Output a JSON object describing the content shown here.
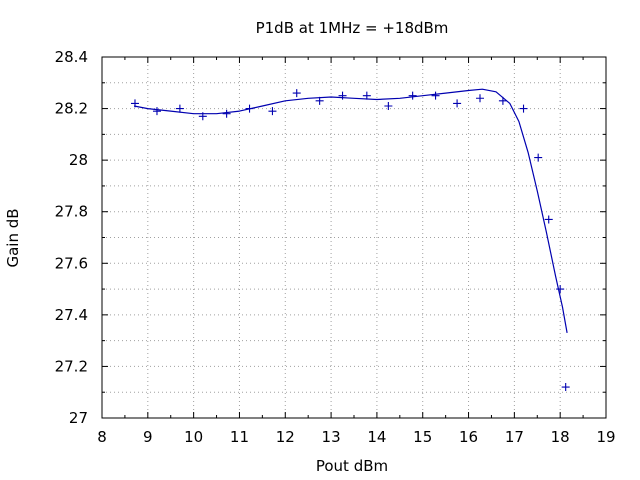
{
  "chart_data": {
    "type": "scatter",
    "title": "P1dB at 1MHz = +18dBm",
    "xlabel": "Pout dBm",
    "ylabel": "Gain dB",
    "xlim": [
      8,
      19
    ],
    "ylim": [
      27,
      28.4
    ],
    "x_ticks": [
      8,
      9,
      10,
      11,
      12,
      13,
      14,
      15,
      16,
      17,
      18,
      19
    ],
    "y_ticks": [
      27,
      27.2,
      27.4,
      27.6,
      27.8,
      28,
      28.2,
      28.4
    ],
    "x_tick_labels": [
      "8",
      "9",
      "10",
      "11",
      "12",
      "13",
      "14",
      "15",
      "16",
      "17",
      "18",
      "19"
    ],
    "y_tick_labels": [
      "27",
      "27.2",
      "27.4",
      "27.6",
      "27.8",
      "28",
      "28.2",
      "28.4"
    ],
    "grid": true,
    "colors": {
      "series": "#0000b0",
      "grid": "#a0a0a0",
      "frame": "#000000"
    },
    "series": [
      {
        "marker": "plus",
        "points": [
          {
            "x": 8.72,
            "y": 28.22
          },
          {
            "x": 9.2,
            "y": 28.19
          },
          {
            "x": 9.7,
            "y": 28.2
          },
          {
            "x": 10.2,
            "y": 28.17
          },
          {
            "x": 10.72,
            "y": 28.18
          },
          {
            "x": 11.22,
            "y": 28.2
          },
          {
            "x": 11.72,
            "y": 28.19
          },
          {
            "x": 12.25,
            "y": 28.26
          },
          {
            "x": 12.75,
            "y": 28.23
          },
          {
            "x": 13.25,
            "y": 28.25
          },
          {
            "x": 13.78,
            "y": 28.25
          },
          {
            "x": 14.25,
            "y": 28.21
          },
          {
            "x": 14.78,
            "y": 28.25
          },
          {
            "x": 15.28,
            "y": 28.25
          },
          {
            "x": 15.75,
            "y": 28.22
          },
          {
            "x": 16.25,
            "y": 28.24
          },
          {
            "x": 16.75,
            "y": 28.23
          },
          {
            "x": 17.2,
            "y": 28.2
          },
          {
            "x": 17.52,
            "y": 28.01
          },
          {
            "x": 17.75,
            "y": 27.77
          },
          {
            "x": 18.0,
            "y": 27.5
          },
          {
            "x": 18.12,
            "y": 27.12
          }
        ]
      },
      {
        "style": "line",
        "points": [
          {
            "x": 8.7,
            "y": 28.21
          },
          {
            "x": 9.0,
            "y": 28.2
          },
          {
            "x": 9.5,
            "y": 28.19
          },
          {
            "x": 10.0,
            "y": 28.18
          },
          {
            "x": 10.5,
            "y": 28.18
          },
          {
            "x": 11.0,
            "y": 28.19
          },
          {
            "x": 11.5,
            "y": 28.21
          },
          {
            "x": 12.0,
            "y": 28.23
          },
          {
            "x": 12.5,
            "y": 28.24
          },
          {
            "x": 13.0,
            "y": 28.245
          },
          {
            "x": 13.5,
            "y": 28.24
          },
          {
            "x": 14.0,
            "y": 28.235
          },
          {
            "x": 14.5,
            "y": 28.24
          },
          {
            "x": 15.0,
            "y": 28.25
          },
          {
            "x": 15.5,
            "y": 28.26
          },
          {
            "x": 16.0,
            "y": 28.27
          },
          {
            "x": 16.3,
            "y": 28.275
          },
          {
            "x": 16.6,
            "y": 28.265
          },
          {
            "x": 16.9,
            "y": 28.22
          },
          {
            "x": 17.1,
            "y": 28.15
          },
          {
            "x": 17.3,
            "y": 28.03
          },
          {
            "x": 17.5,
            "y": 27.88
          },
          {
            "x": 17.7,
            "y": 27.72
          },
          {
            "x": 17.9,
            "y": 27.55
          },
          {
            "x": 18.05,
            "y": 27.43
          },
          {
            "x": 18.15,
            "y": 27.33
          }
        ]
      }
    ]
  }
}
